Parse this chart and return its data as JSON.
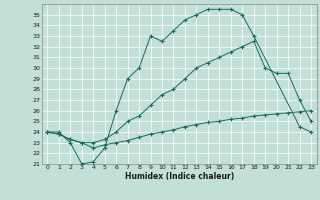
{
  "xlabel": "Humidex (Indice chaleur)",
  "bg_color": "#c2e0d8",
  "grid_color": "#ffffff",
  "line_color": "#1a6b5a",
  "xlim": [
    -0.5,
    23.5
  ],
  "ylim": [
    21,
    36
  ],
  "xticks": [
    0,
    1,
    2,
    3,
    4,
    5,
    6,
    7,
    8,
    9,
    10,
    11,
    12,
    13,
    14,
    15,
    16,
    17,
    18,
    19,
    20,
    21,
    22,
    23
  ],
  "yticks": [
    21,
    22,
    23,
    24,
    25,
    26,
    27,
    28,
    29,
    30,
    31,
    32,
    33,
    34,
    35
  ],
  "series1_x": [
    0,
    1,
    2,
    3,
    4,
    5,
    6,
    7,
    8,
    9,
    10,
    11,
    12,
    13,
    14,
    15,
    16,
    17,
    18,
    22,
    23
  ],
  "series1_y": [
    24,
    24,
    23,
    21,
    21.2,
    22.5,
    26,
    29,
    30,
    33,
    32.5,
    33.5,
    34.5,
    35,
    35.5,
    35.5,
    35.5,
    35,
    33,
    24.5,
    24
  ],
  "series2_x": [
    0,
    1,
    2,
    3,
    4,
    5,
    6,
    7,
    8,
    9,
    10,
    11,
    12,
    13,
    14,
    15,
    16,
    17,
    18,
    19,
    20,
    21,
    22,
    23
  ],
  "series2_y": [
    24,
    23.8,
    23.3,
    23,
    23,
    23.3,
    24,
    25,
    25.5,
    26.5,
    27.5,
    28,
    29,
    30,
    30.5,
    31,
    31.5,
    32,
    32.5,
    30,
    29.5,
    29.5,
    27,
    25
  ],
  "series3_x": [
    0,
    1,
    2,
    3,
    4,
    5,
    6,
    7,
    8,
    9,
    10,
    11,
    12,
    13,
    14,
    15,
    16,
    17,
    18,
    19,
    20,
    21,
    22,
    23
  ],
  "series3_y": [
    24,
    23.8,
    23.3,
    23,
    22.5,
    22.8,
    23,
    23.2,
    23.5,
    23.8,
    24,
    24.2,
    24.5,
    24.7,
    24.9,
    25,
    25.2,
    25.3,
    25.5,
    25.6,
    25.7,
    25.8,
    25.9,
    26
  ]
}
